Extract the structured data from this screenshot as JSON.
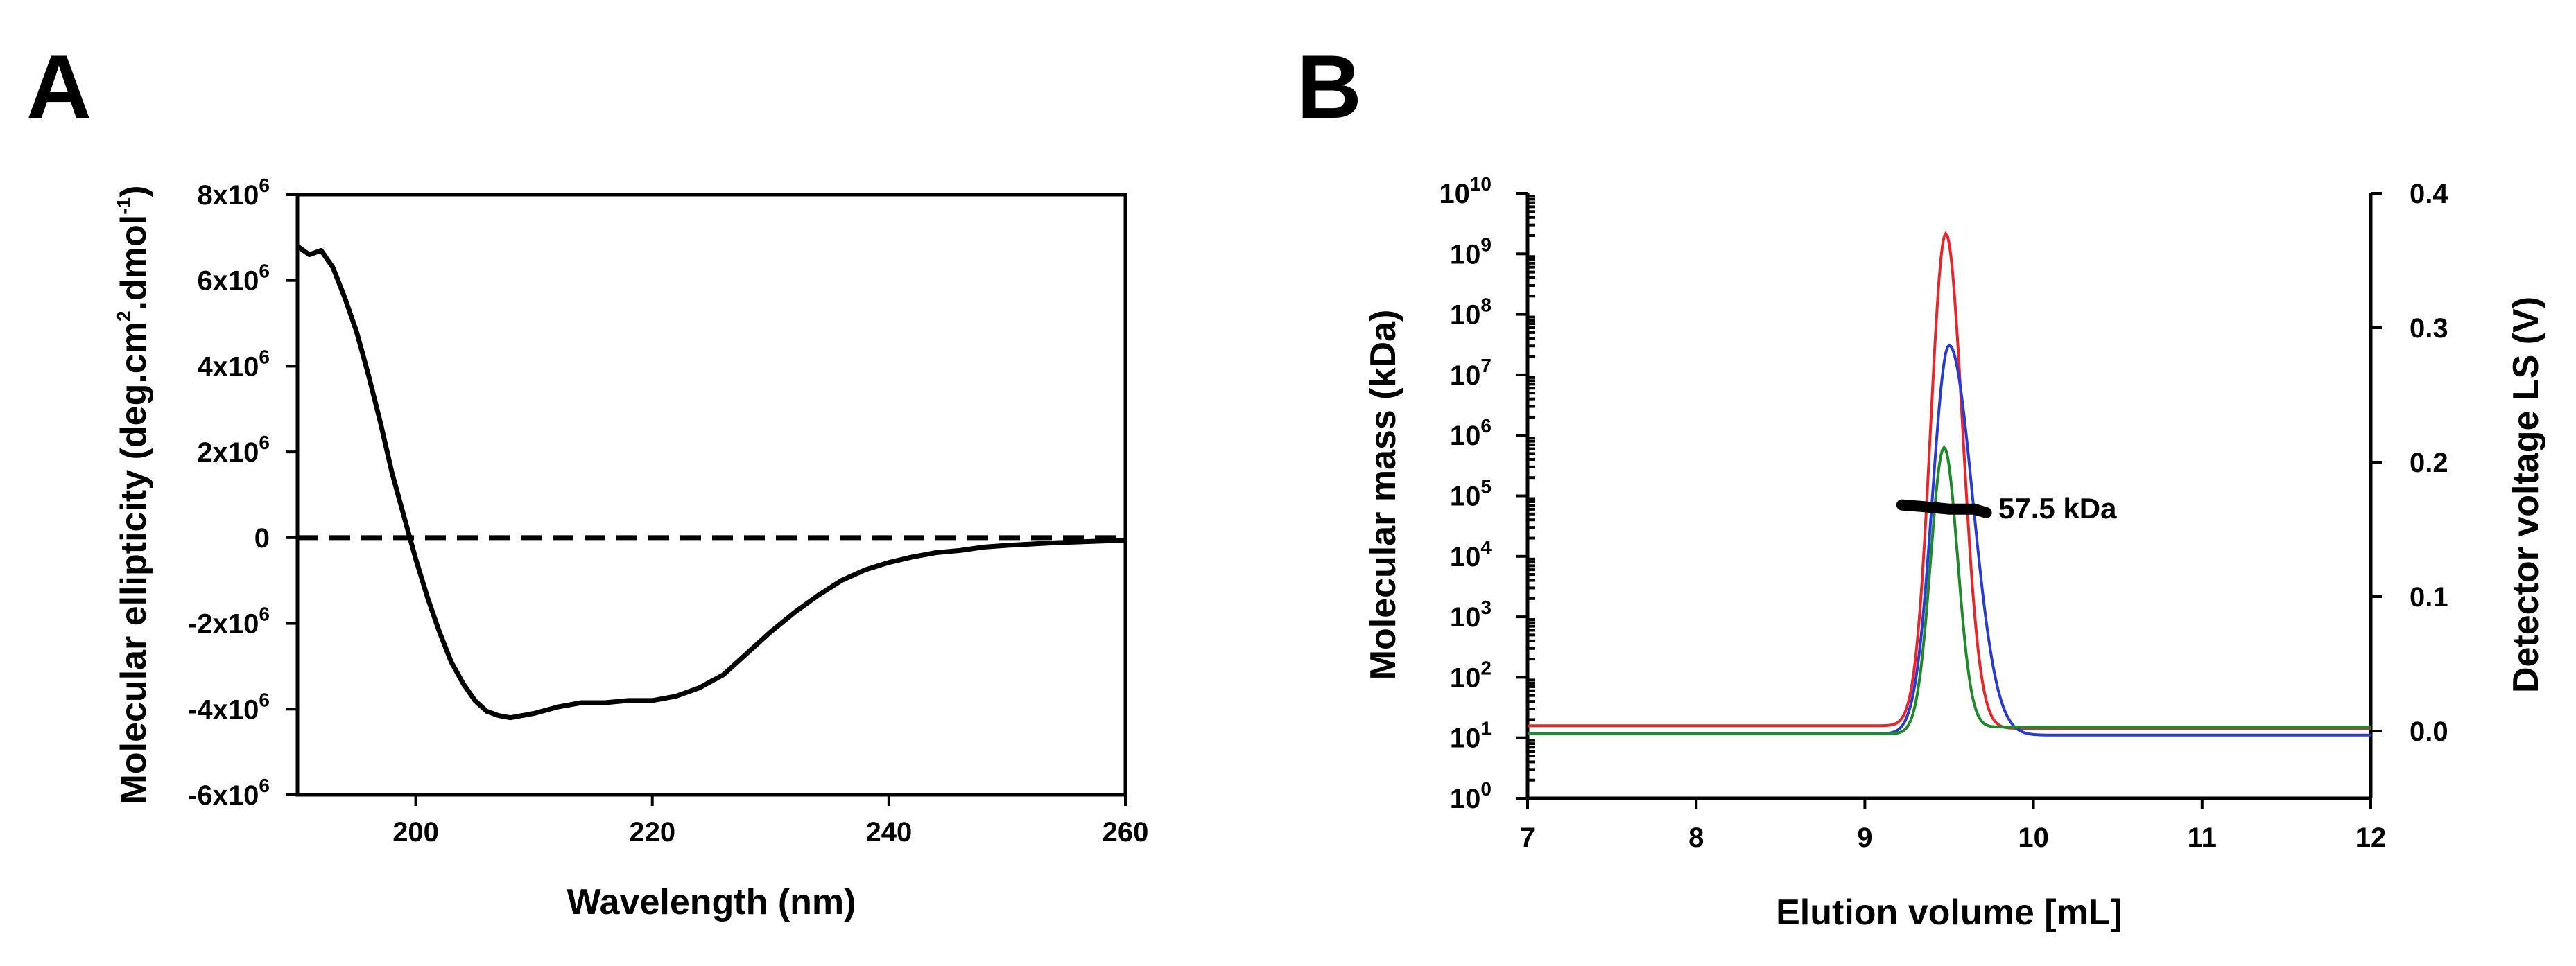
{
  "chart_data": [
    {
      "panel": "A",
      "type": "line",
      "xlabel": "Wavelength (nm)",
      "ylabel_parts": [
        "Molecular ellipticity (deg.cm",
        "2",
        ".dmol",
        "-1",
        ")"
      ],
      "xlim": [
        190,
        260
      ],
      "ylim": [
        -6000000,
        8000000
      ],
      "x_ticks": [
        200,
        220,
        240,
        260
      ],
      "y_ticks": [
        {
          "v": 8000000,
          "base": "8x10",
          "exp": "6"
        },
        {
          "v": 6000000,
          "base": "6x10",
          "exp": "6"
        },
        {
          "v": 4000000,
          "base": "4x10",
          "exp": "6"
        },
        {
          "v": 2000000,
          "base": "2x10",
          "exp": "6"
        },
        {
          "v": 0,
          "base": "0",
          "exp": ""
        },
        {
          "v": -2000000,
          "base": "-2x10",
          "exp": "6"
        },
        {
          "v": -4000000,
          "base": "-4x10",
          "exp": "6"
        },
        {
          "v": -6000000,
          "base": "-6x10",
          "exp": "6"
        }
      ],
      "zero_line": {
        "style": "dashed",
        "y": 0
      },
      "series": [
        {
          "name": "CD spectrum",
          "color": "#000000",
          "x": [
            190,
            191,
            192,
            193,
            194,
            195,
            196,
            197,
            198,
            199,
            200,
            201,
            202,
            203,
            204,
            205,
            206,
            207,
            208,
            209,
            210,
            212,
            214,
            216,
            218,
            220,
            222,
            224,
            226,
            228,
            230,
            232,
            234,
            236,
            238,
            240,
            242,
            244,
            246,
            248,
            250,
            252,
            254,
            256,
            258,
            260
          ],
          "y": [
            6800000,
            6600000,
            6700000,
            6300000,
            5600000,
            4800000,
            3800000,
            2700000,
            1500000,
            500000,
            -500000,
            -1400000,
            -2200000,
            -2900000,
            -3400000,
            -3800000,
            -4050000,
            -4150000,
            -4200000,
            -4150000,
            -4100000,
            -3950000,
            -3850000,
            -3850000,
            -3800000,
            -3800000,
            -3700000,
            -3500000,
            -3200000,
            -2700000,
            -2200000,
            -1750000,
            -1350000,
            -1000000,
            -750000,
            -580000,
            -450000,
            -350000,
            -300000,
            -220000,
            -180000,
            -150000,
            -120000,
            -100000,
            -80000,
            -60000
          ]
        }
      ]
    },
    {
      "panel": "B",
      "type": "line",
      "xlabel": "Elution volume [mL]",
      "ylabel": "Molecular mass (kDa)",
      "y2label": "Detector voltage LS (V)",
      "xlim": [
        7,
        12
      ],
      "ylim_log10": [
        0,
        10
      ],
      "y2lim": [
        -0.05,
        0.4
      ],
      "x_ticks": [
        7,
        8,
        9,
        10,
        11,
        12
      ],
      "y_ticks": [
        {
          "exp_v": 0,
          "base": "10",
          "exp": "0"
        },
        {
          "exp_v": 1,
          "base": "10",
          "exp": "1"
        },
        {
          "exp_v": 2,
          "base": "10",
          "exp": "2"
        },
        {
          "exp_v": 3,
          "base": "10",
          "exp": "3"
        },
        {
          "exp_v": 4,
          "base": "10",
          "exp": "4"
        },
        {
          "exp_v": 5,
          "base": "10",
          "exp": "5"
        },
        {
          "exp_v": 6,
          "base": "10",
          "exp": "6"
        },
        {
          "exp_v": 7,
          "base": "10",
          "exp": "7"
        },
        {
          "exp_v": 8,
          "base": "10",
          "exp": "8"
        },
        {
          "exp_v": 9,
          "base": "10",
          "exp": "9"
        },
        {
          "exp_v": 10,
          "base": "10",
          "exp": "10"
        }
      ],
      "y2_ticks": [
        {
          "v": 0.0,
          "label": "0.0"
        },
        {
          "v": 0.1,
          "label": "0.1"
        },
        {
          "v": 0.2,
          "label": "0.2"
        },
        {
          "v": 0.3,
          "label": "0.3"
        },
        {
          "v": 0.4,
          "label": "0.4"
        }
      ],
      "series": [
        {
          "name": "red detector signal",
          "color": "#e8262a",
          "axis": "y2",
          "baseline": 0.004,
          "peak_x": 9.48,
          "peak_height": 0.37,
          "sigma_left": 0.09,
          "sigma_right": 0.1,
          "baseline_after": 0.002
        },
        {
          "name": "blue detector signal",
          "color": "#2a3ad6",
          "axis": "y2",
          "baseline": -0.002,
          "peak_x": 9.5,
          "peak_height": 0.287,
          "sigma_left": 0.1,
          "sigma_right": 0.14,
          "baseline_after": -0.003
        },
        {
          "name": "green detector signal",
          "color": "#1f8a2c",
          "axis": "y2",
          "baseline": -0.002,
          "peak_x": 9.47,
          "peak_height": 0.211,
          "sigma_left": 0.08,
          "sigma_right": 0.08,
          "baseline_after": 0.003
        }
      ],
      "mass_segment": {
        "name": "molar mass",
        "color": "#000000",
        "axis": "y",
        "x": [
          9.22,
          9.35,
          9.5,
          9.65,
          9.72
        ],
        "log10_y": [
          4.85,
          4.82,
          4.78,
          4.78,
          4.72
        ]
      },
      "annotation": "57.5 kDa"
    }
  ]
}
